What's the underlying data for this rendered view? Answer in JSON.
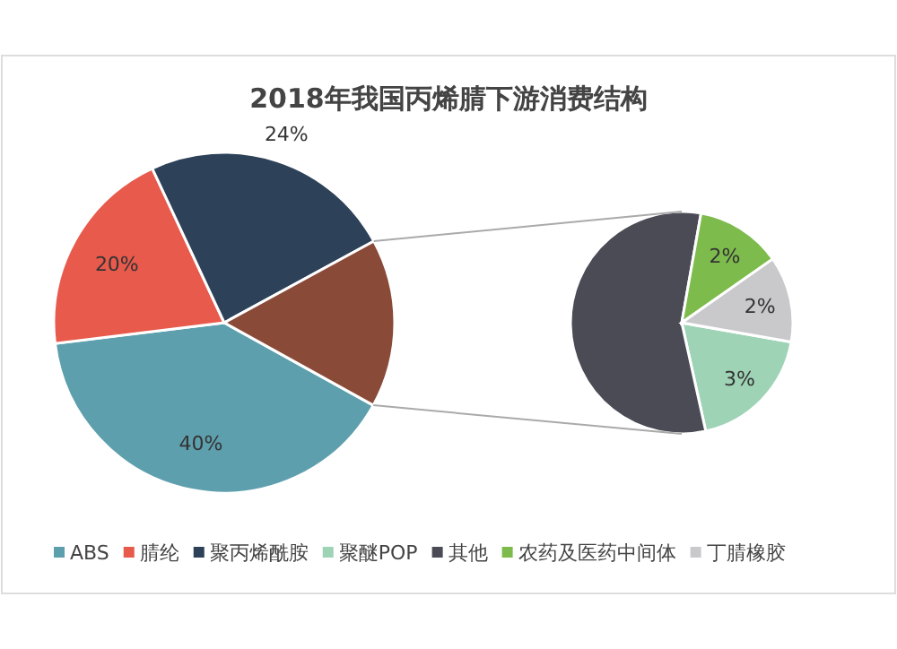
{
  "chart_data": [
    {
      "type": "pie",
      "title": "2018年我国丙烯腈下游消费结构",
      "categories": [
        "ABS",
        "腈纶",
        "聚丙烯酰胺",
        null
      ],
      "values": [
        40,
        20,
        24,
        16
      ],
      "colors": [
        "#5e9fae",
        "#e85a4c",
        "#2d4159",
        "#8a4a38"
      ],
      "value_labels": [
        "40%",
        "20%",
        "24%",
        null
      ],
      "legend": "bottom"
    },
    {
      "type": "pie",
      "categories": [
        "聚醚POP",
        "其他",
        "农药及医药中间体",
        "丁腈橡胶"
      ],
      "values": [
        3,
        9,
        2,
        2
      ],
      "colors": [
        "#9ed3b6",
        "#4a4b55",
        "#7dbb4c",
        "#c9c9cc"
      ],
      "value_labels": [
        "3%",
        null,
        "2%",
        "2%"
      ],
      "legend": "bottom"
    }
  ]
}
